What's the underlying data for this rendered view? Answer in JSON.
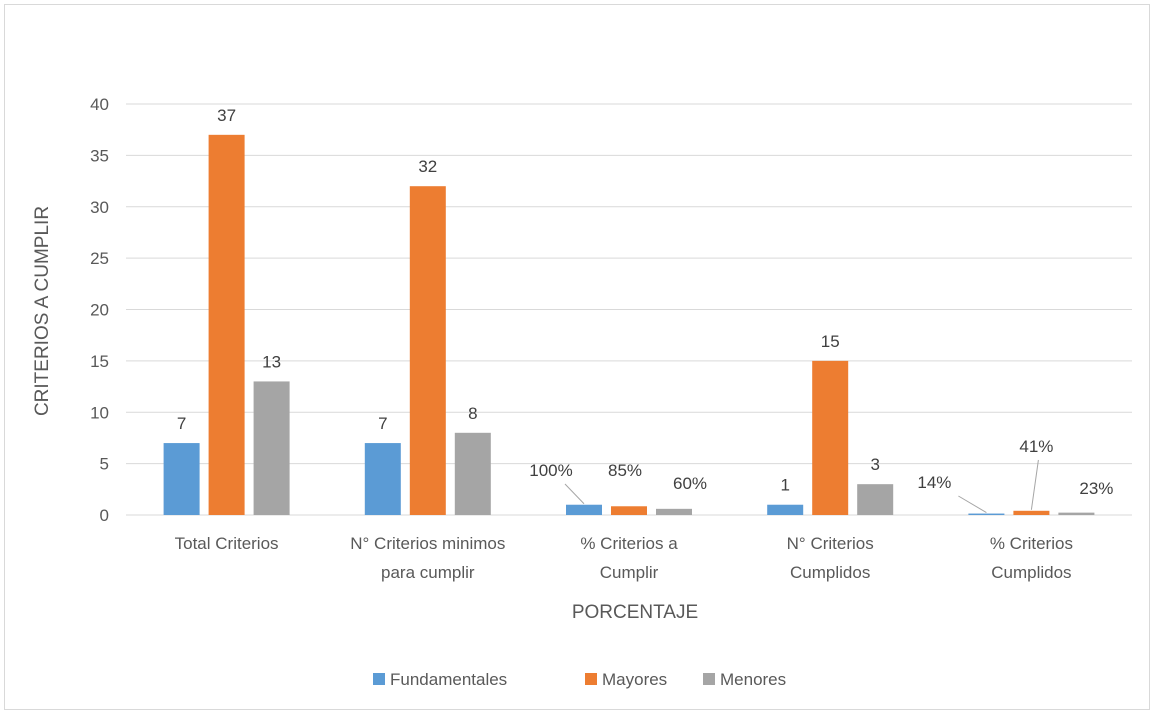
{
  "chart_data": {
    "type": "bar",
    "title": "",
    "xlabel": "PORCENTAJE",
    "ylabel": "CRITERIOS A CUMPLIR",
    "ylim": [
      0,
      40
    ],
    "yticks": [
      0,
      5,
      10,
      15,
      20,
      25,
      30,
      35,
      40
    ],
    "grid": true,
    "legend_position": "bottom",
    "categories": [
      [
        "Total Criterios"
      ],
      [
        "N° Criterios minimos",
        "para cumplir"
      ],
      [
        "% Criterios a",
        "Cumplir"
      ],
      [
        "N° Criterios",
        "Cumplidos"
      ],
      [
        "% Criterios",
        "Cumplidos"
      ]
    ],
    "series": [
      {
        "name": "Fundamentales",
        "color": "#5b9bd5",
        "values": [
          7,
          7,
          1,
          1,
          0.14
        ],
        "labels": [
          "7",
          "7",
          "100%",
          "1",
          "14%"
        ]
      },
      {
        "name": "Mayores",
        "color": "#ed7d31",
        "values": [
          37,
          32,
          0.85,
          15,
          0.41
        ],
        "labels": [
          "37",
          "32",
          "85%",
          "15",
          "41%"
        ]
      },
      {
        "name": "Menores",
        "color": "#a5a5a5",
        "values": [
          13,
          8,
          0.6,
          3,
          0.23
        ],
        "labels": [
          "13",
          "8",
          "60%",
          "3",
          "23%"
        ]
      }
    ]
  }
}
